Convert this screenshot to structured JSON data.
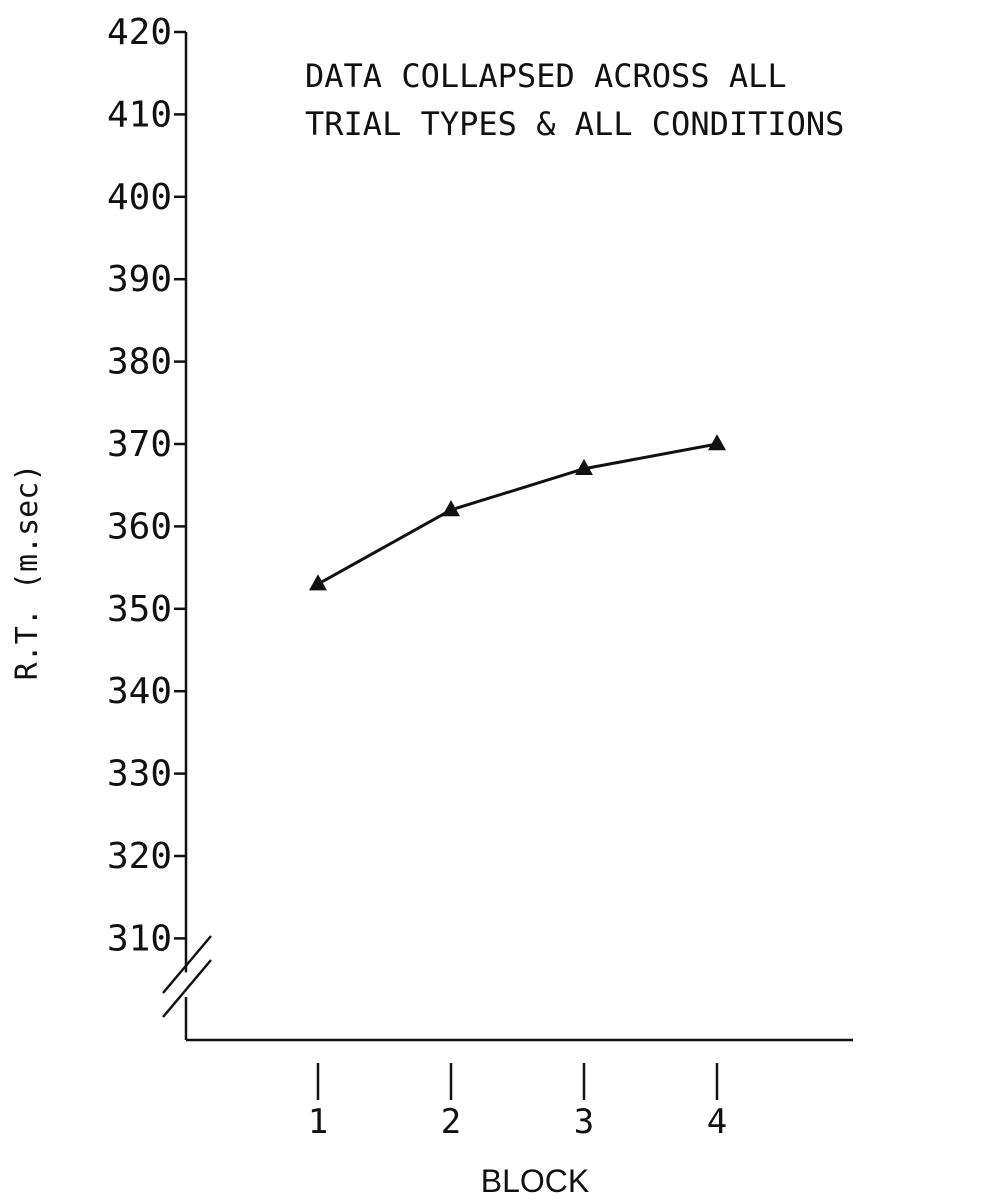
{
  "chart_data": {
    "type": "line",
    "title_lines": [
      "DATA COLLAPSED ACROSS ALL",
      "TRIAL TYPES & ALL CONDITIONS"
    ],
    "xlabel": "BLOCK",
    "ylabel": "R.T. (m.sec)",
    "categories": [
      "1",
      "2",
      "3",
      "4"
    ],
    "x": [
      1,
      2,
      3,
      4
    ],
    "y_ticks": [
      310,
      320,
      330,
      340,
      350,
      360,
      370,
      380,
      390,
      400,
      410,
      420
    ],
    "ylim": [
      300,
      420
    ],
    "axis_break": true,
    "grid": false,
    "marker": "triangle",
    "series": [
      {
        "values": [
          353,
          362,
          367,
          370
        ]
      }
    ],
    "colors": {
      "ink": "#111111",
      "background": "#ffffff"
    }
  }
}
